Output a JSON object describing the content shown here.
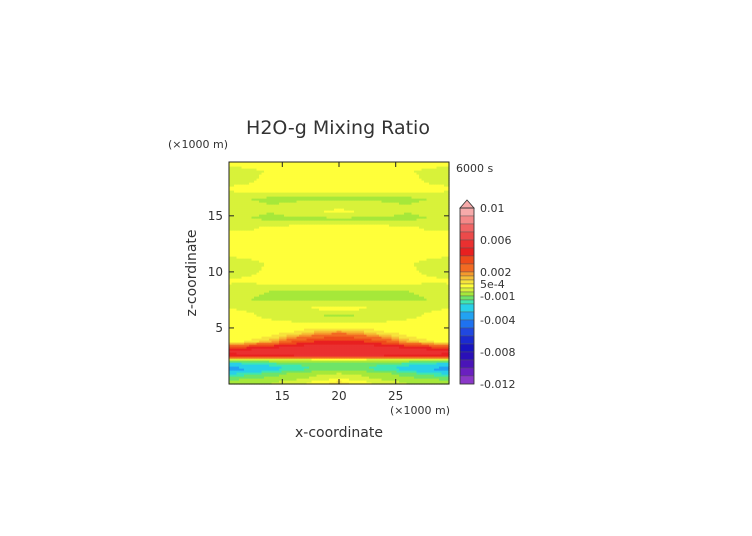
{
  "chart_data": {
    "type": "heatmap",
    "title": "H2O-g Mixing Ratio",
    "time_label": "6000 s",
    "xlabel": "x-coordinate",
    "ylabel": "z-coordinate",
    "x_unit": "(×1000 m)",
    "z_unit": "(×1000 m)",
    "xlim": [
      10.3,
      29.7
    ],
    "ylim": [
      0,
      19.8
    ],
    "x_ticks": [
      15,
      20,
      25
    ],
    "y_ticks": [
      5,
      10,
      15
    ],
    "grid": false,
    "colorbar": {
      "placement": "right",
      "vmin": -0.012,
      "vmax": 0.01,
      "extend": "max",
      "tick_labels": [
        {
          "value": 0.01,
          "label": "0.01"
        },
        {
          "value": 0.006,
          "label": "0.006"
        },
        {
          "value": 0.002,
          "label": "0.002"
        },
        {
          "value": 0.0005,
          "label": "5e-4"
        },
        {
          "value": -0.001,
          "label": "-0.001"
        },
        {
          "value": -0.004,
          "label": "-0.004"
        },
        {
          "value": -0.008,
          "label": "-0.008"
        },
        {
          "value": -0.012,
          "label": "-0.012"
        }
      ],
      "levels": [
        {
          "lo": 0.009,
          "hi": 0.01,
          "color": "#f7aaaa"
        },
        {
          "lo": 0.008,
          "hi": 0.009,
          "color": "#f48888"
        },
        {
          "lo": 0.007,
          "hi": 0.008,
          "color": "#f06464"
        },
        {
          "lo": 0.006,
          "hi": 0.007,
          "color": "#ec4a4a"
        },
        {
          "lo": 0.005,
          "hi": 0.006,
          "color": "#ea3030"
        },
        {
          "lo": 0.004,
          "hi": 0.005,
          "color": "#e82020"
        },
        {
          "lo": 0.003,
          "hi": 0.004,
          "color": "#ee4a1a"
        },
        {
          "lo": 0.002,
          "hi": 0.003,
          "color": "#f26a22"
        },
        {
          "lo": 0.0015,
          "hi": 0.002,
          "color": "#f59a2c"
        },
        {
          "lo": 0.001,
          "hi": 0.0015,
          "color": "#f6c035"
        },
        {
          "lo": 0.0005,
          "hi": 0.001,
          "color": "#f7e33b"
        },
        {
          "lo": 0.0,
          "hi": 0.0005,
          "color": "#ffff3a"
        },
        {
          "lo": -0.0005,
          "hi": 0.0,
          "color": "#d8f23a"
        },
        {
          "lo": -0.001,
          "hi": -0.0005,
          "color": "#a6e83a"
        },
        {
          "lo": -0.0015,
          "hi": -0.001,
          "color": "#6ee468"
        },
        {
          "lo": -0.002,
          "hi": -0.0015,
          "color": "#3ee6b2"
        },
        {
          "lo": -0.003,
          "hi": -0.002,
          "color": "#28d0e8"
        },
        {
          "lo": -0.004,
          "hi": -0.003,
          "color": "#22a2f2"
        },
        {
          "lo": -0.005,
          "hi": -0.004,
          "color": "#1e72f0"
        },
        {
          "lo": -0.006,
          "hi": -0.005,
          "color": "#2048e0"
        },
        {
          "lo": -0.007,
          "hi": -0.006,
          "color": "#1a2ad0"
        },
        {
          "lo": -0.008,
          "hi": -0.007,
          "color": "#1814c0"
        },
        {
          "lo": -0.009,
          "hi": -0.008,
          "color": "#2a10b8"
        },
        {
          "lo": -0.01,
          "hi": -0.009,
          "color": "#4a14b8"
        },
        {
          "lo": -0.011,
          "hi": -0.01,
          "color": "#6a20c0"
        },
        {
          "lo": -0.012,
          "hi": -0.011,
          "color": "#8a38c8"
        }
      ]
    },
    "field": {
      "description_values": "approximate mixing-ratio values (data units) read from contour colors",
      "x": [
        10.3,
        12,
        14,
        16,
        18,
        20,
        22,
        24,
        26,
        28,
        29.7
      ],
      "z": [
        0.2,
        0.6,
        1.0,
        1.4,
        1.8,
        2.2,
        2.6,
        3.0,
        3.4,
        3.8,
        4.2,
        4.6,
        5.0,
        5.6,
        6.2,
        6.8,
        7.6,
        8.4,
        9.2,
        10.0,
        10.8,
        11.6,
        12.4,
        13.2,
        14.0,
        14.8,
        15.4,
        16.0,
        16.6,
        17.4,
        18.2,
        19.0,
        19.6
      ],
      "values": [
        [
          -0.0008,
          -0.0007,
          -0.0005,
          -0.0003,
          0.0002,
          0.0007,
          0.0002,
          -0.0003,
          -0.0005,
          -0.0007,
          -0.0008
        ],
        [
          -0.0012,
          -0.0011,
          -0.0009,
          -0.0007,
          -0.0004,
          -0.0002,
          -0.0004,
          -0.0007,
          -0.0009,
          -0.0011,
          -0.0012
        ],
        [
          -0.0022,
          -0.0018,
          -0.0013,
          -0.0009,
          -0.0006,
          -0.0005,
          -0.0006,
          -0.0009,
          -0.0013,
          -0.0018,
          -0.0022
        ],
        [
          -0.0035,
          -0.0031,
          -0.0024,
          -0.0018,
          -0.0014,
          -0.0012,
          -0.0014,
          -0.0018,
          -0.0024,
          -0.0031,
          -0.0035
        ],
        [
          -0.0025,
          -0.0022,
          -0.0018,
          -0.0015,
          -0.0013,
          -0.0012,
          -0.0013,
          -0.0015,
          -0.0018,
          -0.0022,
          -0.0025
        ],
        [
          -0.0006,
          -0.0006,
          -0.0005,
          -0.0005,
          -0.0004,
          -0.0004,
          -0.0004,
          -0.0005,
          -0.0005,
          -0.0006,
          -0.0006
        ],
        [
          0.0045,
          0.0048,
          0.005,
          0.0052,
          0.0053,
          0.0053,
          0.0053,
          0.0052,
          0.005,
          0.0048,
          0.0045
        ],
        [
          0.0055,
          0.0056,
          0.0057,
          0.0058,
          0.0058,
          0.0058,
          0.0058,
          0.0058,
          0.0057,
          0.0056,
          0.0055
        ],
        [
          0.0025,
          0.0035,
          0.0045,
          0.0052,
          0.0055,
          0.0056,
          0.0055,
          0.0052,
          0.0045,
          0.0035,
          0.0025
        ],
        [
          0.0003,
          0.0006,
          0.0015,
          0.0032,
          0.0042,
          0.0046,
          0.0042,
          0.0032,
          0.0015,
          0.0006,
          0.0003
        ],
        [
          0.0002,
          0.0003,
          0.0006,
          0.0018,
          0.0028,
          0.0033,
          0.0028,
          0.0018,
          0.0006,
          0.0003,
          0.0002
        ],
        [
          0.0002,
          0.0002,
          0.0003,
          0.0006,
          0.0014,
          0.002,
          0.0014,
          0.0006,
          0.0003,
          0.0002,
          0.0002
        ],
        [
          0.0002,
          0.0002,
          0.0002,
          0.0003,
          0.0004,
          0.0006,
          0.0004,
          0.0003,
          0.0002,
          0.0002,
          0.0002
        ],
        [
          0.0002,
          0.0001,
          0.0001,
          0.0,
          -0.0001,
          -0.0001,
          -0.0001,
          0.0,
          0.0001,
          0.0001,
          0.0002
        ],
        [
          0.0002,
          0.0001,
          -0.0002,
          -0.0004,
          -0.0005,
          -0.0006,
          -0.0005,
          -0.0004,
          -0.0002,
          0.0001,
          0.0002
        ],
        [
          0.0,
          -0.0001,
          -0.0002,
          -0.0001,
          0.0001,
          0.0002,
          0.0001,
          -0.0001,
          -0.0002,
          -0.0001,
          0.0
        ],
        [
          -0.0004,
          -0.0005,
          -0.0006,
          -0.0006,
          -0.0006,
          -0.0006,
          -0.0006,
          -0.0006,
          -0.0006,
          -0.0005,
          -0.0004
        ],
        [
          -0.0003,
          -0.0004,
          -0.0005,
          -0.0005,
          -0.0005,
          -0.0005,
          -0.0005,
          -0.0005,
          -0.0005,
          -0.0004,
          -0.0003
        ],
        [
          0.0001,
          0.0001,
          0.0002,
          0.0002,
          0.0002,
          0.0002,
          0.0002,
          0.0002,
          0.0002,
          0.0001,
          0.0001
        ],
        [
          -0.0002,
          -0.0001,
          0.0001,
          0.0002,
          0.0002,
          0.0002,
          0.0002,
          0.0002,
          0.0001,
          -0.0001,
          -0.0002
        ],
        [
          -0.0003,
          -0.0002,
          0.0001,
          0.0002,
          0.0002,
          0.0002,
          0.0002,
          0.0002,
          0.0001,
          -0.0002,
          -0.0003
        ],
        [
          0.0001,
          0.0002,
          0.0002,
          0.0002,
          0.0002,
          0.0002,
          0.0002,
          0.0002,
          0.0002,
          0.0002,
          0.0001
        ],
        [
          0.0002,
          0.0002,
          0.0002,
          0.0002,
          0.0002,
          0.0002,
          0.0002,
          0.0002,
          0.0002,
          0.0002,
          0.0002
        ],
        [
          0.0002,
          0.0002,
          0.0002,
          0.0002,
          0.0002,
          0.0002,
          0.0002,
          0.0002,
          0.0002,
          0.0002,
          0.0002
        ],
        [
          -0.0001,
          -0.0001,
          0.0001,
          0.0002,
          0.0002,
          0.0002,
          0.0002,
          0.0002,
          0.0001,
          -0.0001,
          -0.0001
        ],
        [
          -0.0004,
          -0.0005,
          -0.0006,
          -0.0006,
          -0.0006,
          -0.0006,
          -0.0006,
          -0.0006,
          -0.0006,
          -0.0005,
          -0.0004
        ],
        [
          -0.0002,
          -0.0004,
          -0.0005,
          -0.0003,
          -0.0001,
          0.0002,
          -0.0001,
          -0.0003,
          -0.0005,
          -0.0004,
          -0.0002
        ],
        [
          -0.0002,
          -0.0004,
          -0.0005,
          -0.0004,
          -0.0003,
          -0.0002,
          -0.0003,
          -0.0004,
          -0.0005,
          -0.0004,
          -0.0002
        ],
        [
          -0.0004,
          -0.0005,
          -0.0006,
          -0.0006,
          -0.0006,
          -0.0006,
          -0.0006,
          -0.0006,
          -0.0006,
          -0.0005,
          -0.0004
        ],
        [
          0.0001,
          0.0002,
          0.0002,
          0.0002,
          0.0002,
          0.0002,
          0.0002,
          0.0002,
          0.0002,
          0.0002,
          0.0001
        ],
        [
          -0.0002,
          -0.0001,
          0.0002,
          0.0002,
          0.0002,
          0.0002,
          0.0002,
          0.0002,
          0.0002,
          -0.0001,
          -0.0002
        ],
        [
          -0.0003,
          -0.0002,
          0.0001,
          0.0002,
          0.0002,
          0.0002,
          0.0002,
          0.0002,
          0.0001,
          -0.0002,
          -0.0003
        ],
        [
          0.0001,
          0.0002,
          0.0002,
          0.0002,
          0.0002,
          0.0002,
          0.0002,
          0.0002,
          0.0002,
          0.0002,
          0.0001
        ]
      ]
    }
  }
}
